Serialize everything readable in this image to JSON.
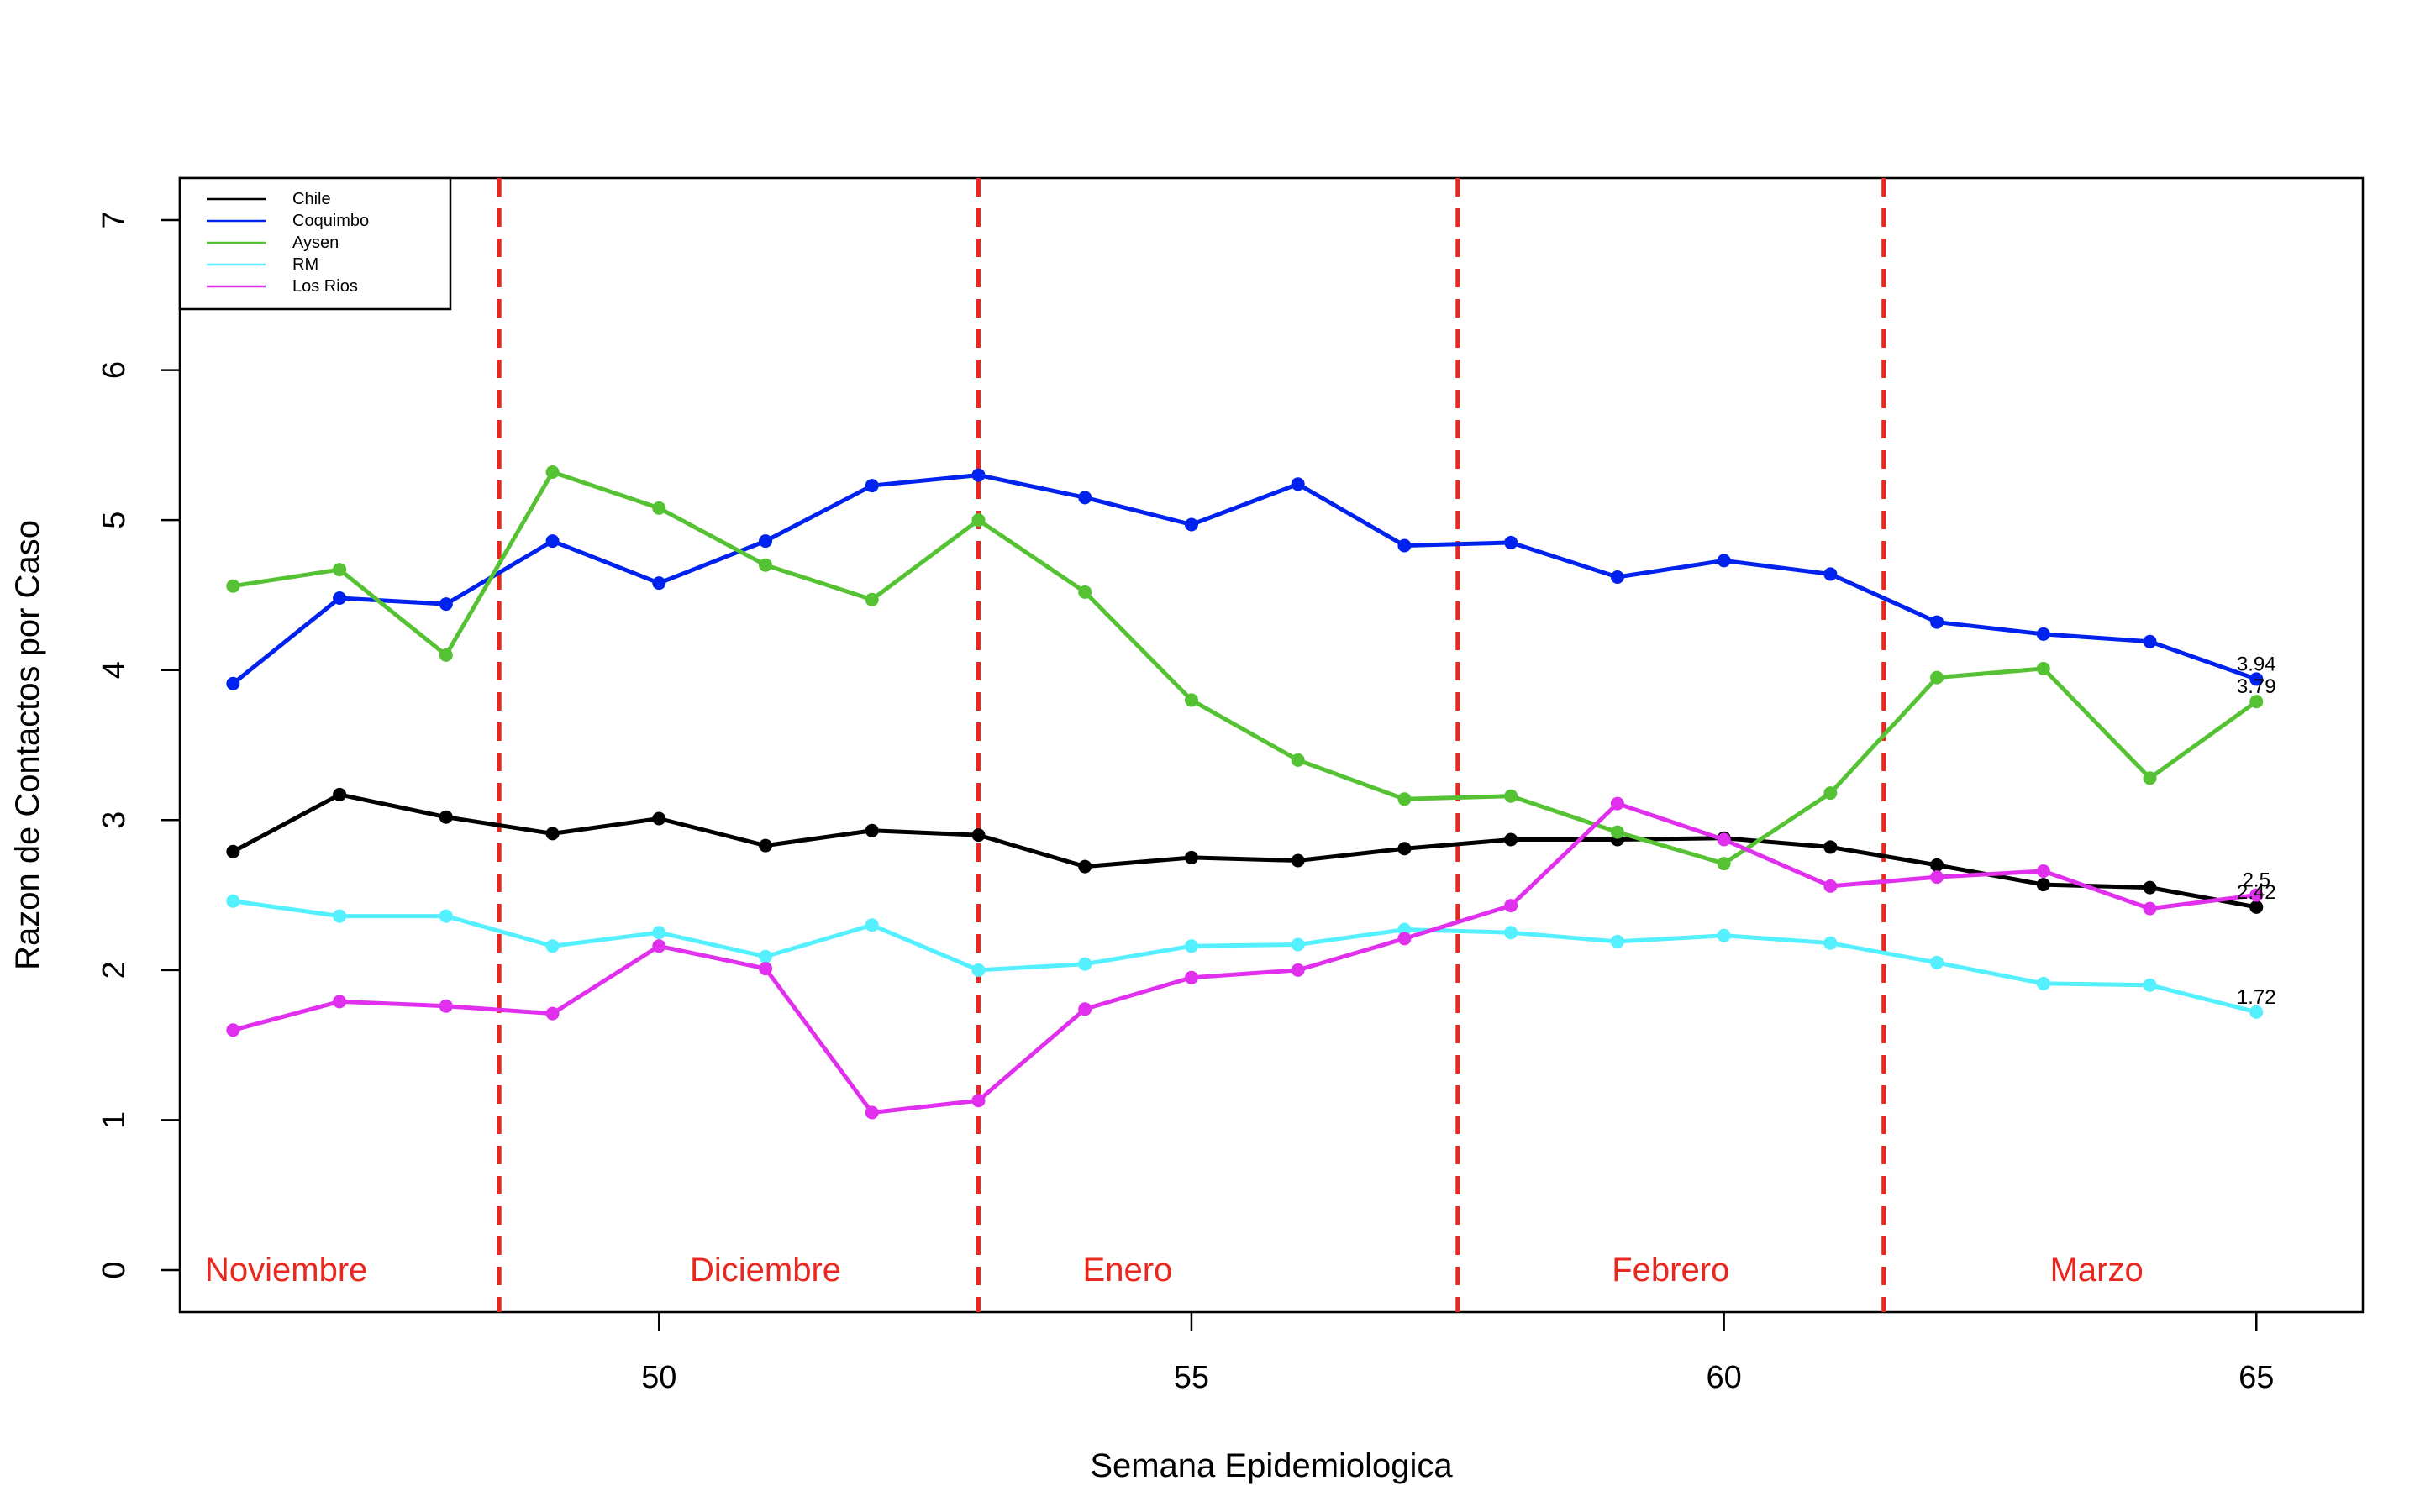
{
  "chart_data": {
    "type": "line",
    "title": "",
    "xlabel": "Semana Epidemiologica",
    "ylabel": "Razon de Contactos por Caso",
    "xlim": [
      45.5,
      66
    ],
    "ylim": [
      -0.28,
      7.28
    ],
    "x_ticks": [
      "50",
      "55",
      "60",
      "65"
    ],
    "y_ticks": [
      "0",
      "1",
      "2",
      "3",
      "4",
      "5",
      "6",
      "7"
    ],
    "grid": false,
    "legend_position": "top-left",
    "x": [
      46,
      47,
      48,
      49,
      50,
      51,
      52,
      53,
      54,
      55,
      56,
      57,
      58,
      59,
      60,
      61,
      62,
      63,
      64,
      65
    ],
    "series": [
      {
        "name": "Chile",
        "color": "#000000",
        "values": [
          2.79,
          3.17,
          3.02,
          2.91,
          3.01,
          2.83,
          2.93,
          2.9,
          2.69,
          2.75,
          2.73,
          2.81,
          2.87,
          2.87,
          2.88,
          2.82,
          2.7,
          2.57,
          2.55,
          2.42
        ],
        "end_label": "2.42"
      },
      {
        "name": "Coquimbo",
        "color": "#0022ee",
        "values": [
          3.91,
          4.48,
          4.44,
          4.86,
          4.58,
          4.86,
          5.23,
          5.3,
          5.15,
          4.97,
          5.24,
          4.83,
          4.85,
          4.62,
          4.73,
          4.64,
          4.32,
          4.24,
          4.19,
          3.94
        ],
        "end_label": "3.94"
      },
      {
        "name": "Aysen",
        "color": "#55c233",
        "values": [
          4.56,
          4.67,
          4.1,
          5.32,
          5.08,
          4.7,
          4.47,
          5.0,
          4.52,
          3.8,
          3.4,
          3.14,
          3.16,
          2.92,
          2.71,
          3.18,
          3.95,
          4.01,
          3.28,
          3.79
        ],
        "end_label": "3.79"
      },
      {
        "name": "RM",
        "color": "#55f0ff",
        "values": [
          2.46,
          2.36,
          2.36,
          2.16,
          2.25,
          2.09,
          2.3,
          2.0,
          2.04,
          2.16,
          2.17,
          2.27,
          2.25,
          2.19,
          2.23,
          2.18,
          2.05,
          1.91,
          1.9,
          1.72
        ],
        "end_label": "1.72"
      },
      {
        "name": "Los Rios",
        "color": "#e030ee",
        "values": [
          1.6,
          1.79,
          1.76,
          1.71,
          2.16,
          2.01,
          1.05,
          1.13,
          1.74,
          1.95,
          2.0,
          2.21,
          2.43,
          3.11,
          2.87,
          2.56,
          2.62,
          2.66,
          2.41,
          2.5
        ],
        "end_label": "2.5"
      }
    ],
    "vertical_lines": {
      "color": "#e8281e",
      "x": [
        48.5,
        53,
        57.5,
        61.5
      ]
    },
    "month_labels": [
      {
        "label": "Noviembre",
        "x": 46.5
      },
      {
        "label": "Diciembre",
        "x": 51
      },
      {
        "label": "Enero",
        "x": 54.4
      },
      {
        "label": "Febrero",
        "x": 59.5
      },
      {
        "label": "Marzo",
        "x": 63.5
      }
    ],
    "month_label_color": "#e8281e"
  }
}
